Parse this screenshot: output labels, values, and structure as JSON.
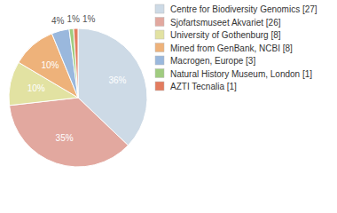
{
  "chart_data": {
    "type": "pie",
    "categories": [
      "Centre for Biodiversity Genomics [27]",
      "Sjofartsmuseet Akvariet [26]",
      "University of Gothenburg [8]",
      "Mined from GenBank, NCBI [8]",
      "Macrogen, Europe [3]",
      "Natural History Museum, London [1]",
      "AZTI Tecnalia [1]"
    ],
    "values": [
      36,
      35,
      10,
      10,
      4,
      1,
      1
    ],
    "value_labels": [
      "36%",
      "35%",
      "10%",
      "10%",
      "4%",
      "1%",
      "1%"
    ],
    "colors": [
      "#cddae6",
      "#e2a89f",
      "#e2e2a2",
      "#eeb27a",
      "#9ab8dd",
      "#a0cc80",
      "#e37c5f"
    ],
    "data_labels": true,
    "legend": "right"
  }
}
